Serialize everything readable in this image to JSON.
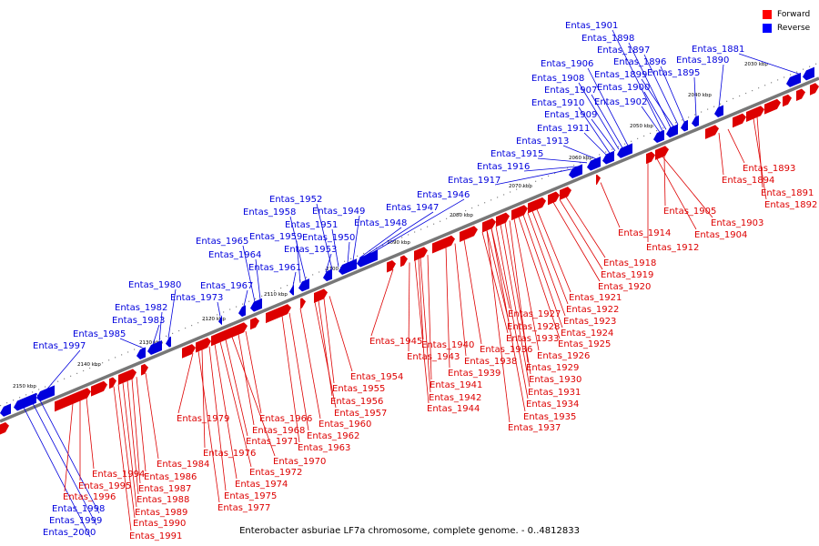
{
  "caption": "Enterobacter asburiae LF7a chromosome, complete genome. - 0..4812833",
  "legend": [
    {
      "label": "Forward",
      "color": "#ff0000"
    },
    {
      "label": "Reverse",
      "color": "#0000ff"
    }
  ],
  "colors": {
    "forward": "#dd0000",
    "reverse": "#0000dd",
    "axis": "#666666"
  },
  "ticks": [
    "2030 kbp",
    "2040 kbp",
    "2050 kbp",
    "2060 kbp",
    "2070 kbp",
    "2080 kbp",
    "2090 kbp",
    "2100 kbp",
    "2110 kbp",
    "2120 kbp",
    "2130 kbp",
    "2140 kbp",
    "2150 kbp"
  ],
  "reverse_labels": [
    "Entas_1881",
    "Entas_1890",
    "Entas_1895",
    "Entas_1896",
    "Entas_1897",
    "Entas_1898",
    "Entas_1899",
    "Entas_1900",
    "Entas_1901",
    "Entas_1902",
    "Entas_1906",
    "Entas_1907",
    "Entas_1908",
    "Entas_1909",
    "Entas_1910",
    "Entas_1911",
    "Entas_1913",
    "Entas_1915",
    "Entas_1916",
    "Entas_1917",
    "Entas_1946",
    "Entas_1947",
    "Entas_1948",
    "Entas_1949",
    "Entas_1950",
    "Entas_1951",
    "Entas_1952",
    "Entas_1953",
    "Entas_1958",
    "Entas_1959",
    "Entas_1961",
    "Entas_1964",
    "Entas_1965",
    "Entas_1967",
    "Entas_1973",
    "Entas_1980",
    "Entas_1982",
    "Entas_1983",
    "Entas_1985",
    "Entas_1997",
    "Entas_1998",
    "Entas_1999",
    "Entas_2000"
  ],
  "forward_labels": [
    "Entas_1891",
    "Entas_1892",
    "Entas_1893",
    "Entas_1894",
    "Entas_1903",
    "Entas_1904",
    "Entas_1905",
    "Entas_1912",
    "Entas_1914",
    "Entas_1918",
    "Entas_1919",
    "Entas_1920",
    "Entas_1921",
    "Entas_1922",
    "Entas_1923",
    "Entas_1924",
    "Entas_1925",
    "Entas_1926",
    "Entas_1927",
    "Entas_1928",
    "Entas_1929",
    "Entas_1930",
    "Entas_1931",
    "Entas_1933",
    "Entas_1934",
    "Entas_1935",
    "Entas_1936",
    "Entas_1937",
    "Entas_1938",
    "Entas_1939",
    "Entas_1940",
    "Entas_1941",
    "Entas_1942",
    "Entas_1943",
    "Entas_1944",
    "Entas_1945",
    "Entas_1954",
    "Entas_1955",
    "Entas_1956",
    "Entas_1957",
    "Entas_1960",
    "Entas_1962",
    "Entas_1963",
    "Entas_1966",
    "Entas_1968",
    "Entas_1970",
    "Entas_1971",
    "Entas_1972",
    "Entas_1974",
    "Entas_1975",
    "Entas_1976",
    "Entas_1977",
    "Entas_1979",
    "Entas_1984",
    "Entas_1986",
    "Entas_1987",
    "Entas_1988",
    "Entas_1989",
    "Entas_1990",
    "Entas_1991",
    "Entas_1994",
    "Entas_1995",
    "Entas_1996"
  ]
}
